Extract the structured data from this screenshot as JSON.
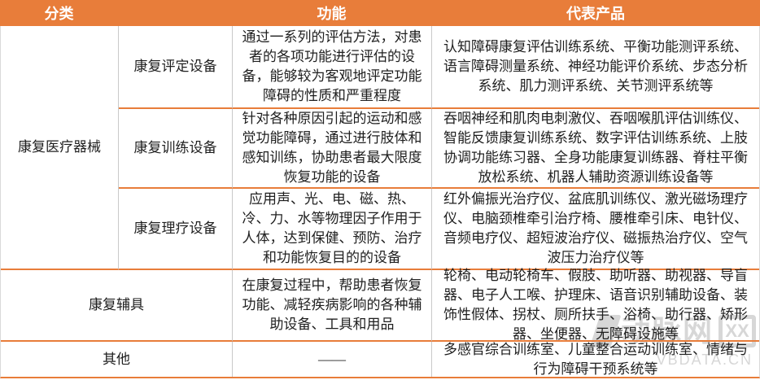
{
  "table": {
    "headers": [
      "分类",
      "功能",
      "代表产品"
    ],
    "groups": [
      {
        "category": "康复医疗器械",
        "subrows": [
          {
            "subcategory": "康复评定设备",
            "function": "通过一系列的评估方法，对患者的各项功能进行评估的设备，能够较为客观地评定功能障碍的性质和严重程度",
            "products": "认知障碍康复评估训练系统、平衡功能测评系统、语言障碍测量系统、神经功能评价系统、步态分析系统、肌力测评系统、关节测评系统等"
          },
          {
            "subcategory": "康复训练设备",
            "function": "针对各种原因引起的运动和感觉功能障碍，通过进行肢体和感知训练，协助患者最大限度恢复功能的设备",
            "products": "吞咽神经和肌肉电刺激仪、吞咽喉肌评估训练仪、智能反馈康复训练系统、数字评估训练系统、上肢协调功能练习器、全身功能康复训练器、脊柱平衡放松系统、机器人辅助资源训练设备等"
          },
          {
            "subcategory": "康复理疗设备",
            "function": "应用声、光、电、磁、热、冷、力、水等物理因子作用于人体，达到保健、预防、治疗和功能恢复目的的设备",
            "products": "红外偏振光治疗仪、盆底肌训练仪、激光磁场理疗仪、电脑颈椎牵引治疗椅、腰椎牵引床、电针仪、音频电疗仪、超短波治疗仪、磁振热治疗仪、空气波压力治疗仪等"
          }
        ]
      },
      {
        "category": "康复辅具",
        "function": "在康复过程中，帮助患者恢复功能、减轻疾病影响的各种辅助设备、工具和用品",
        "products": "轮椅、电动轮椅车、假肢、助听器、助视器、导盲器、电子人工喉、护理床、语音识别辅助设备、装饰性假体、拐杖、厕所扶手、浴椅、助行器、矫形器、坐便器、无障碍设施等"
      },
      {
        "category": "其他",
        "function": "——",
        "products": "多感官综合训练室、儿童整合运动训练室、情绪与行为障碍干预系统等"
      }
    ]
  },
  "watermark": {
    "mark": "动脉网",
    "box_label": "XX",
    "domain": "VBDATA.CN"
  },
  "colors": {
    "header_bg": "#E87D3A",
    "divider_orange": "#E87D3A",
    "divider_gray": "#C9C9C9",
    "text": "#1F1F1F",
    "watermark": "#D7D7D7"
  }
}
